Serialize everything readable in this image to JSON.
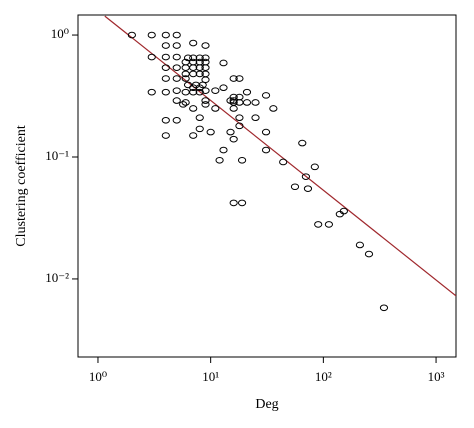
{
  "chart_data": {
    "type": "scatter",
    "x_label": "Deg",
    "y_label": "Clustering coefficient",
    "log_x": true,
    "log_y": true,
    "xlim": [
      0.665,
      1503
    ],
    "ylim": [
      0.00229,
      1.46
    ],
    "xticks": [
      {
        "value": 1,
        "label": "10⁰"
      },
      {
        "value": 10,
        "label": "10¹"
      },
      {
        "value": 100,
        "label": "10²"
      },
      {
        "value": 1000,
        "label": "10³"
      }
    ],
    "yticks": [
      {
        "value": 0.01,
        "label": "10⁻²"
      },
      {
        "value": 0.1,
        "label": "10⁻¹"
      },
      {
        "value": 1,
        "label": "10⁰"
      }
    ],
    "color": "#000000",
    "x": [
      2,
      3,
      4,
      5,
      3,
      4,
      5,
      7,
      9,
      4,
      5,
      6.3,
      7,
      8,
      9,
      6,
      7,
      8,
      9,
      4,
      5,
      6,
      7,
      8,
      9,
      4,
      5,
      6,
      7,
      8,
      9,
      6,
      6.3,
      7.4,
      8.5,
      9,
      3,
      4,
      5,
      6,
      7,
      8,
      9,
      6,
      9,
      8,
      7,
      5,
      5.7,
      13,
      16,
      18,
      21,
      16,
      11,
      13,
      16,
      18,
      15,
      16,
      25,
      31,
      36,
      21,
      18,
      7,
      9,
      11,
      4,
      5,
      8,
      18,
      25,
      16,
      4,
      8,
      10,
      15,
      18,
      31,
      7,
      13,
      12,
      19,
      31,
      44,
      65,
      56,
      70,
      84,
      73,
      90,
      112,
      140,
      152,
      211,
      254,
      345,
      16,
      19,
      16
    ],
    "values": [
      1.0,
      1.0,
      1.0,
      1.0,
      0.66,
      0.82,
      0.82,
      0.86,
      0.82,
      0.66,
      0.66,
      0.65,
      0.65,
      0.65,
      0.65,
      0.6,
      0.6,
      0.6,
      0.6,
      0.54,
      0.54,
      0.54,
      0.54,
      0.54,
      0.54,
      0.44,
      0.44,
      0.44,
      0.48,
      0.48,
      0.48,
      0.48,
      0.39,
      0.39,
      0.39,
      0.43,
      0.34,
      0.34,
      0.35,
      0.34,
      0.34,
      0.34,
      0.35,
      0.28,
      0.29,
      0.37,
      0.37,
      0.29,
      0.27,
      0.59,
      0.44,
      0.44,
      0.34,
      0.31,
      0.35,
      0.37,
      0.29,
      0.31,
      0.29,
      0.28,
      0.28,
      0.32,
      0.25,
      0.28,
      0.28,
      0.25,
      0.27,
      0.25,
      0.2,
      0.2,
      0.21,
      0.21,
      0.21,
      0.25,
      0.15,
      0.17,
      0.16,
      0.16,
      0.18,
      0.16,
      0.15,
      0.114,
      0.094,
      0.094,
      0.114,
      0.091,
      0.13,
      0.057,
      0.069,
      0.083,
      0.055,
      0.028,
      0.028,
      0.034,
      0.036,
      0.019,
      0.016,
      0.0058,
      0.042,
      0.042,
      0.14
    ],
    "fit_line": {
      "color": "#a0282d",
      "x": [
        1.15,
        1503
      ],
      "y": [
        1.43,
        0.00726
      ]
    }
  }
}
